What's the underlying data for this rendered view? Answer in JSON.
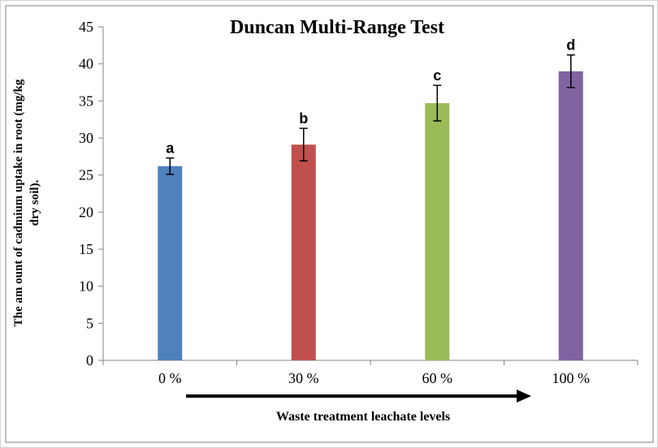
{
  "chart_data": {
    "type": "bar",
    "title": "Duncan Multi-Range Test",
    "ylabel_lines": [
      "The am ount of cadmium uptake in root (mg/kg",
      "dry soil)."
    ],
    "xlabel": "Waste treatment leachate levels",
    "categories": [
      "0 %",
      "30 %",
      "60 %",
      "100 %"
    ],
    "values": [
      26.2,
      29.1,
      34.7,
      39.0
    ],
    "errors": [
      1.1,
      2.2,
      2.4,
      2.2
    ],
    "significance_labels": [
      "a",
      "b",
      "c",
      "d"
    ],
    "bar_colors": [
      "#4f81bd",
      "#c0504d",
      "#9bbb59",
      "#8064a2"
    ],
    "ylim": [
      0,
      45
    ],
    "yticks": [
      0,
      5,
      10,
      15,
      20,
      25,
      30,
      35,
      40,
      45
    ],
    "grid": false,
    "legend": "none",
    "arrow_under_x_axis": true
  }
}
